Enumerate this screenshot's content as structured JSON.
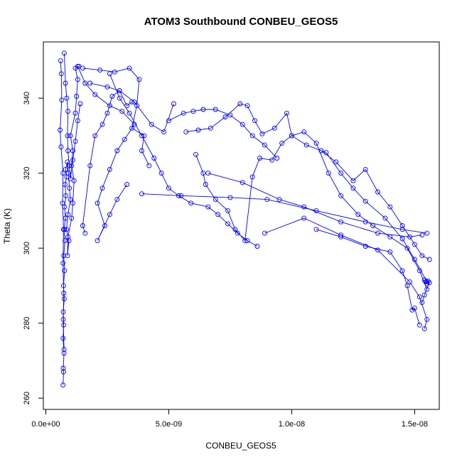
{
  "chart_data": {
    "type": "scatter",
    "title": "ATOM3 Southbound CONBEU_GEOS5",
    "xlabel": "CONBEU_GEOS5",
    "ylabel": "Theta (K)",
    "xlim": [
      -1e-10,
      1.6e-08
    ],
    "ylim": [
      257,
      355
    ],
    "x_ticks": [
      0,
      5e-09,
      1e-08,
      1.5e-08
    ],
    "x_tick_labels": [
      "0.0e+00",
      "5.0e-09",
      "1.0e-08",
      "1.5e-08"
    ],
    "y_ticks": [
      260,
      280,
      300,
      320,
      340
    ],
    "y_tick_labels": [
      "260",
      "280",
      "300",
      "320",
      "340"
    ],
    "marker": "open-circle",
    "connected": true,
    "color": "#0000ff",
    "grid": false,
    "series": [
      {
        "points": [
          [
            7e-10,
            263.5
          ],
          [
            7.2e-10,
            267.0
          ],
          [
            7.1e-10,
            268.0
          ],
          [
            7.4e-10,
            272.0
          ],
          [
            7e-10,
            276.0
          ],
          [
            7.3e-10,
            279.5
          ],
          [
            7.1e-10,
            283.0
          ],
          [
            7.5e-10,
            286.5
          ],
          [
            7.2e-10,
            290.0
          ],
          [
            7.6e-10,
            294.0
          ],
          [
            7.3e-10,
            298.0
          ],
          [
            7.8e-10,
            302.0
          ],
          [
            7.4e-10,
            305.0
          ],
          [
            8e-10,
            308.0
          ],
          [
            7.6e-10,
            311.0
          ],
          [
            8.2e-10,
            314.0
          ],
          [
            7.8e-10,
            317.0
          ],
          [
            8.5e-10,
            319.0
          ],
          [
            8e-10,
            321.0
          ],
          [
            8.8e-10,
            323.0
          ],
          [
            9.2e-10,
            320.0
          ],
          [
            9.6e-10,
            316.0
          ],
          [
            1e-09,
            313.0
          ],
          [
            9e-10,
            309.0
          ],
          [
            8.4e-10,
            305.0
          ],
          [
            9.4e-10,
            302.0
          ],
          [
            8.8e-10,
            298.0
          ],
          [
            9e-10,
            303.0
          ],
          [
            1.05e-09,
            308.0
          ],
          [
            1.1e-09,
            312.0
          ],
          [
            1.15e-09,
            318.0
          ],
          [
            1.05e-09,
            322.0
          ],
          [
            1.1e-09,
            326.0
          ],
          [
            1e-09,
            330.0
          ],
          [
            1.2e-09,
            336.0
          ],
          [
            1.25e-09,
            340.5
          ],
          [
            1.3e-09,
            345.0
          ],
          [
            1.2e-09,
            348.0
          ],
          [
            1.35e-09,
            348.5
          ]
        ]
      },
      {
        "points": [
          [
            6e-10,
            350.0
          ],
          [
            6.3e-10,
            346.5
          ],
          [
            6.5e-10,
            339.5
          ],
          [
            5.8e-10,
            331.5
          ],
          [
            6.2e-10,
            327.0
          ],
          [
            7e-10,
            320.0
          ],
          [
            6.8e-10,
            312.0
          ],
          [
            7.2e-10,
            305.0
          ],
          [
            7e-10,
            296.0
          ],
          [
            7.3e-10,
            288.0
          ],
          [
            7.1e-10,
            281.0
          ],
          [
            7.4e-10,
            273.0
          ]
        ]
      },
      {
        "points": [
          [
            7.5e-10,
            352.0
          ],
          [
            8e-10,
            344.0
          ],
          [
            8.5e-10,
            340.0
          ],
          [
            9e-10,
            336.5
          ],
          [
            8.8e-10,
            330.0
          ],
          [
            9e-10,
            326.0
          ],
          [
            9.5e-10,
            322.0
          ],
          [
            1e-09,
            318.5
          ],
          [
            1.1e-09,
            323.5
          ],
          [
            1.2e-09,
            328.5
          ],
          [
            1.3e-09,
            334.0
          ],
          [
            1.4e-09,
            338.5
          ]
        ]
      },
      {
        "points": [
          [
            1.5e-09,
            348.0
          ],
          [
            2.2e-09,
            347.5
          ],
          [
            2.8e-09,
            347.0
          ],
          [
            3.4e-09,
            348.0
          ],
          [
            3.8e-09,
            345.0
          ],
          [
            3.7e-09,
            338.0
          ],
          [
            3.5e-09,
            332.0
          ],
          [
            4e-09,
            330.0
          ],
          [
            3.9e-09,
            326.0
          ],
          [
            4.2e-09,
            322.0
          ]
        ]
      },
      {
        "points": [
          [
            1.3e-09,
            348.5
          ],
          [
            1.6e-09,
            344.0
          ],
          [
            2e-09,
            341.0
          ],
          [
            2.6e-09,
            338.0
          ],
          [
            3.1e-09,
            336.5
          ],
          [
            3.6e-09,
            333.0
          ],
          [
            3.2e-09,
            329.0
          ],
          [
            2.9e-09,
            326.0
          ],
          [
            2.6e-09,
            321.0
          ],
          [
            2.3e-09,
            316.0
          ],
          [
            2.1e-09,
            312.0
          ],
          [
            2.4e-09,
            306.0
          ],
          [
            2.1e-09,
            302.0
          ],
          [
            2.6e-09,
            309.0
          ],
          [
            2.9e-09,
            313.0
          ],
          [
            3.3e-09,
            317.0
          ]
        ]
      },
      {
        "points": [
          [
            1.6e-09,
            304.0
          ],
          [
            1.5e-09,
            306.0
          ],
          [
            1.8e-09,
            322.0
          ],
          [
            2e-09,
            330.0
          ],
          [
            2.3e-09,
            333.0
          ],
          [
            2.5e-09,
            336.0
          ],
          [
            2.7e-09,
            340.5
          ],
          [
            3e-09,
            342.0
          ],
          [
            3.3e-09,
            338.0
          ],
          [
            3.5e-09,
            339.0
          ]
        ]
      },
      {
        "points": [
          [
            1.8e-09,
            344.0
          ],
          [
            2.5e-09,
            343.0
          ],
          [
            3e-09,
            342.0
          ],
          [
            3.6e-09,
            339.0
          ],
          [
            4.3e-09,
            333.0
          ],
          [
            4.8e-09,
            331.0
          ],
          [
            5.2e-09,
            338.5
          ]
        ]
      },
      {
        "points": [
          [
            2.6e-09,
            346.5
          ],
          [
            3e-09,
            340.0
          ],
          [
            3.4e-09,
            336.0
          ],
          [
            3.9e-09,
            330.0
          ],
          [
            4.4e-09,
            324.0
          ],
          [
            4.7e-09,
            320.0
          ],
          [
            5e-09,
            316.0
          ],
          [
            5.4e-09,
            314.0
          ],
          [
            5.9e-09,
            312.0
          ],
          [
            6.6e-09,
            311.0
          ],
          [
            7e-09,
            309.0
          ],
          [
            7.4e-09,
            306.5
          ],
          [
            7.8e-09,
            304.0
          ],
          [
            8.2e-09,
            302.0
          ],
          [
            8.6e-09,
            300.5
          ]
        ]
      },
      {
        "points": [
          [
            3.9e-09,
            314.5
          ],
          [
            5.5e-09,
            314.0
          ],
          [
            7.5e-09,
            313.5
          ],
          [
            9e-09,
            313.0
          ],
          [
            1.1e-08,
            310.0
          ],
          [
            1.3e-08,
            307.0
          ],
          [
            1.45e-08,
            305.0
          ],
          [
            1.55e-08,
            304.0
          ]
        ]
      },
      {
        "points": [
          [
            5e-09,
            334.0
          ],
          [
            5.6e-09,
            336.0
          ],
          [
            6e-09,
            336.5
          ],
          [
            6.4e-09,
            337.0
          ],
          [
            6.9e-09,
            337.0
          ],
          [
            7.5e-09,
            335.5
          ],
          [
            8e-09,
            333.0
          ],
          [
            8.4e-09,
            330.0
          ],
          [
            8.9e-09,
            327.5
          ],
          [
            9.4e-09,
            324.0
          ]
        ]
      },
      {
        "points": [
          [
            5.7e-09,
            331.0
          ],
          [
            6.2e-09,
            331.5
          ],
          [
            6.7e-09,
            332.0
          ],
          [
            7.3e-09,
            335.0
          ],
          [
            7.9e-09,
            338.5
          ],
          [
            8.2e-09,
            338.0
          ],
          [
            8.5e-09,
            334.0
          ],
          [
            8.8e-09,
            330.5
          ],
          [
            9.3e-09,
            332.0
          ],
          [
            9.8e-09,
            336.0
          ],
          [
            1e-08,
            330.0
          ],
          [
            1.06e-08,
            327.5
          ],
          [
            1.14e-08,
            325.5
          ],
          [
            1.2e-08,
            320.0
          ],
          [
            1.25e-08,
            316.0
          ],
          [
            1.3e-08,
            312.5
          ],
          [
            1.38e-08,
            308.0
          ],
          [
            1.45e-08,
            302.5
          ],
          [
            1.5e-08,
            297.0
          ],
          [
            1.55e-08,
            291.0
          ]
        ]
      },
      {
        "points": [
          [
            6.1e-09,
            325.0
          ],
          [
            6.4e-09,
            320.0
          ],
          [
            6.5e-09,
            317.0
          ],
          [
            6.9e-09,
            313.0
          ],
          [
            7.4e-09,
            310.0
          ],
          [
            7.7e-09,
            305.0
          ],
          [
            8.1e-09,
            302.0
          ],
          [
            8.4e-09,
            319.0
          ],
          [
            8.7e-09,
            324.0
          ],
          [
            9.2e-09,
            323.5
          ],
          [
            9.6e-09,
            328.0
          ],
          [
            1e-08,
            330.0
          ],
          [
            1.05e-08,
            331.0
          ],
          [
            1.1e-08,
            328.0
          ],
          [
            1.15e-08,
            320.0
          ],
          [
            1.2e-08,
            314.0
          ],
          [
            1.27e-08,
            309.0
          ],
          [
            1.33e-08,
            306.0
          ],
          [
            1.4e-08,
            303.0
          ],
          [
            1.47e-08,
            300.0
          ],
          [
            1.52e-08,
            294.0
          ],
          [
            1.55e-08,
            289.0
          ]
        ]
      },
      {
        "points": [
          [
            6.6e-09,
            320.0
          ],
          [
            8e-09,
            317.5
          ],
          [
            9.5e-09,
            313.0
          ],
          [
            1.05e-08,
            311.0
          ],
          [
            1.2e-08,
            307.0
          ],
          [
            1.35e-08,
            304.0
          ],
          [
            1.48e-08,
            303.0
          ],
          [
            1.53e-08,
            303.5
          ]
        ]
      },
      {
        "points": [
          [
            8.9e-09,
            304.0
          ],
          [
            1.05e-08,
            308.0
          ],
          [
            1.2e-08,
            303.5
          ],
          [
            1.35e-08,
            299.5
          ],
          [
            1.48e-08,
            291.0
          ],
          [
            1.52e-08,
            287.0
          ],
          [
            1.55e-08,
            281.0
          ],
          [
            1.54e-08,
            278.5
          ]
        ]
      },
      {
        "points": [
          [
            1.1e-08,
            305.0
          ],
          [
            1.2e-08,
            303.0
          ],
          [
            1.3e-08,
            300.5
          ],
          [
            1.4e-08,
            299.0
          ],
          [
            1.45e-08,
            294.0
          ],
          [
            1.47e-08,
            290.0
          ],
          [
            1.49e-08,
            283.5
          ],
          [
            1.5e-08,
            284.0
          ],
          [
            1.52e-08,
            279.5
          ]
        ]
      },
      {
        "points": [
          [
            1.12e-08,
            326.0
          ],
          [
            1.18e-08,
            323.0
          ],
          [
            1.25e-08,
            318.0
          ],
          [
            1.3e-08,
            321.0
          ],
          [
            1.35e-08,
            315.0
          ],
          [
            1.4e-08,
            311.0
          ],
          [
            1.45e-08,
            306.0
          ],
          [
            1.5e-08,
            301.0
          ],
          [
            1.53e-08,
            298.0
          ],
          [
            1.56e-08,
            297.0
          ]
        ]
      },
      {
        "points": [
          [
            1.54e-08,
            291.5
          ],
          [
            1.545e-08,
            291.0
          ],
          [
            1.55e-08,
            290.5
          ],
          [
            1.555e-08,
            291.2
          ],
          [
            1.56e-08,
            290.8
          ],
          [
            1.54e-08,
            287.5
          ],
          [
            1.53e-08,
            285.5
          ]
        ]
      }
    ]
  }
}
